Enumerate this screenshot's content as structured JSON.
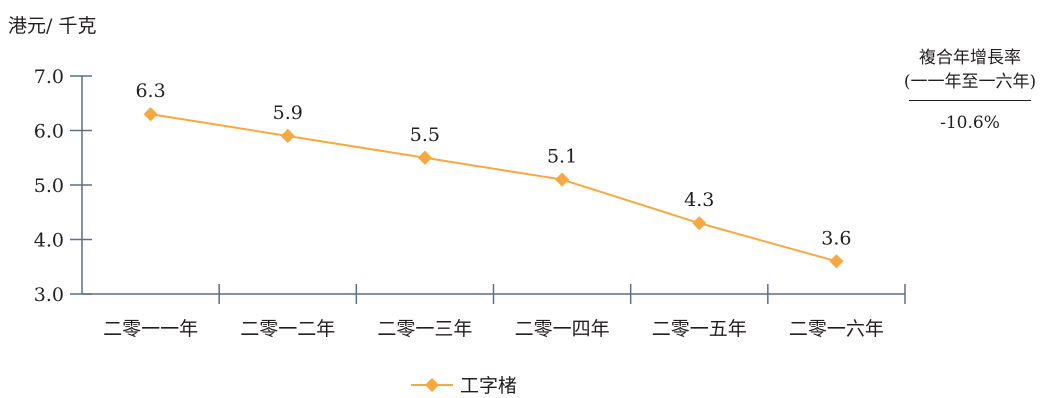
{
  "chart_data": {
    "type": "line",
    "ylabel": "港元/ 千克",
    "categories": [
      "二零一一年",
      "二零一二年",
      "二零一三年",
      "二零一四年",
      "二零一五年",
      "二零一六年"
    ],
    "series": [
      {
        "name": "工字楮",
        "values": [
          6.3,
          5.9,
          5.5,
          5.1,
          4.3,
          3.6
        ],
        "color": "#f7a941"
      }
    ],
    "data_labels": [
      "6.3",
      "5.9",
      "5.5",
      "5.1",
      "4.3",
      "3.6"
    ],
    "ylim": [
      3.0,
      7.0
    ],
    "yticks": [
      "3.0",
      "4.0",
      "5.0",
      "6.0",
      "7.0"
    ],
    "axis_color": "#5b6e8a",
    "grid": false,
    "legend_position": "bottom"
  },
  "cagr": {
    "title": "複合年增長率",
    "period": "(一一年至一六年)",
    "value": "-10.6%"
  }
}
